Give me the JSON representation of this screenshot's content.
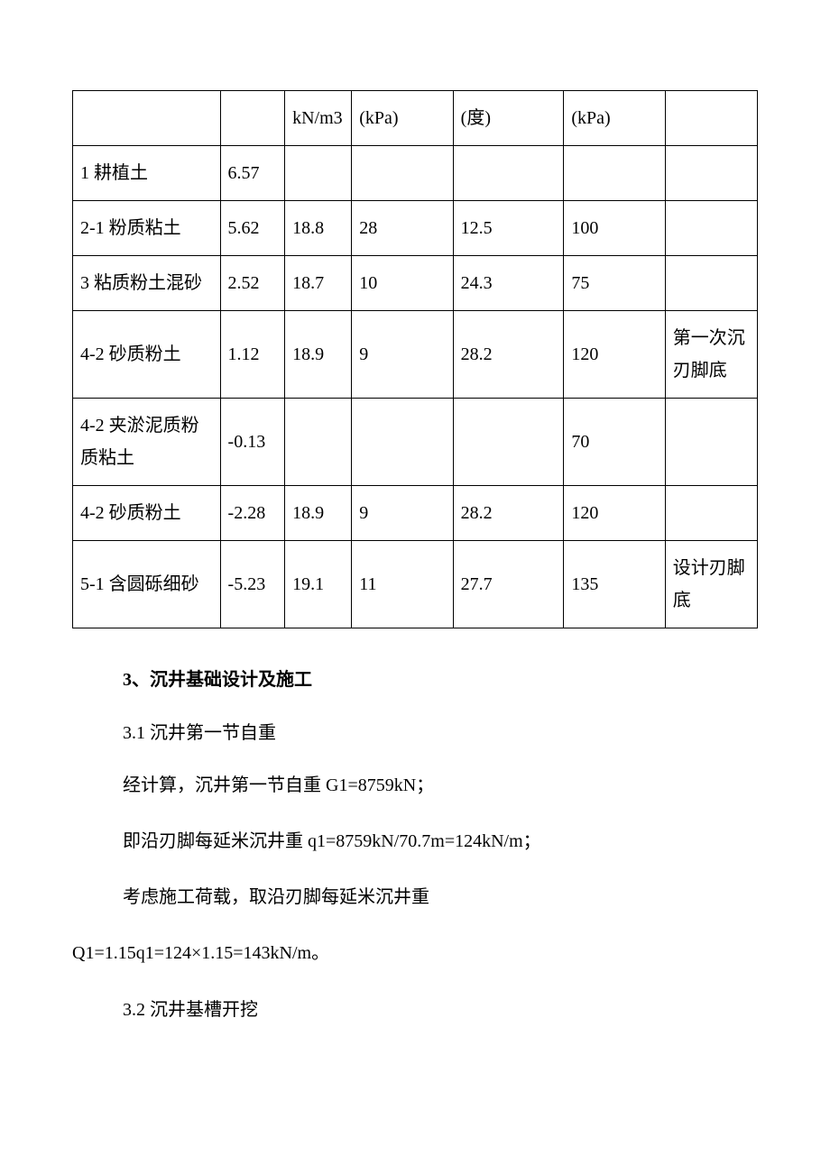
{
  "table": {
    "header": {
      "col3": "kN/m3",
      "col4": "(kPa)",
      "col5": "(度)",
      "col6": "(kPa)"
    },
    "rows": [
      {
        "c1": "1 耕植土",
        "c2": "6.57",
        "c3": "",
        "c4": "",
        "c5": "",
        "c6": "",
        "c7": ""
      },
      {
        "c1": "2-1 粉质粘土",
        "c2": "5.62",
        "c3": "18.8",
        "c4": "28",
        "c5": "12.5",
        "c6": "100",
        "c7": ""
      },
      {
        "c1": "3 粘质粉土混砂",
        "c2": "2.52",
        "c3": "18.7",
        "c4": "10",
        "c5": "24.3",
        "c6": "75",
        "c7": ""
      },
      {
        "c1": "4-2 砂质粉土",
        "c2": "1.12",
        "c3": "18.9",
        "c4": "9",
        "c5": "28.2",
        "c6": "120",
        "c7": "第一次沉刃脚底"
      },
      {
        "c1": "4-2 夹淤泥质粉质粘土",
        "c2": "-0.13",
        "c3": "",
        "c4": "",
        "c5": "",
        "c6": "70",
        "c7": ""
      },
      {
        "c1": "4-2 砂质粉土",
        "c2": "-2.28",
        "c3": "18.9",
        "c4": "9",
        "c5": "28.2",
        "c6": "120",
        "c7": ""
      },
      {
        "c1": "5-1 含圆砾细砂",
        "c2": "-5.23",
        "c3": "19.1",
        "c4": "11",
        "c5": "27.7",
        "c6": "135",
        "c7": "设计刃脚底"
      }
    ]
  },
  "section3": {
    "heading": "3、沉井基础设计及施工",
    "sub31": "3.1 沉井第一节自重",
    "p1": "经计算，沉井第一节自重 G1=8759kN；",
    "p2": "即沿刃脚每延米沉井重 q1=8759kN/70.7m=124kN/m；",
    "p3a": "考虑施工荷载，取沿刃脚每延米沉井重",
    "p3b": "Q1=1.15q1=124×1.15=143kN/m。",
    "sub32": "3.2 沉井基槽开挖"
  }
}
